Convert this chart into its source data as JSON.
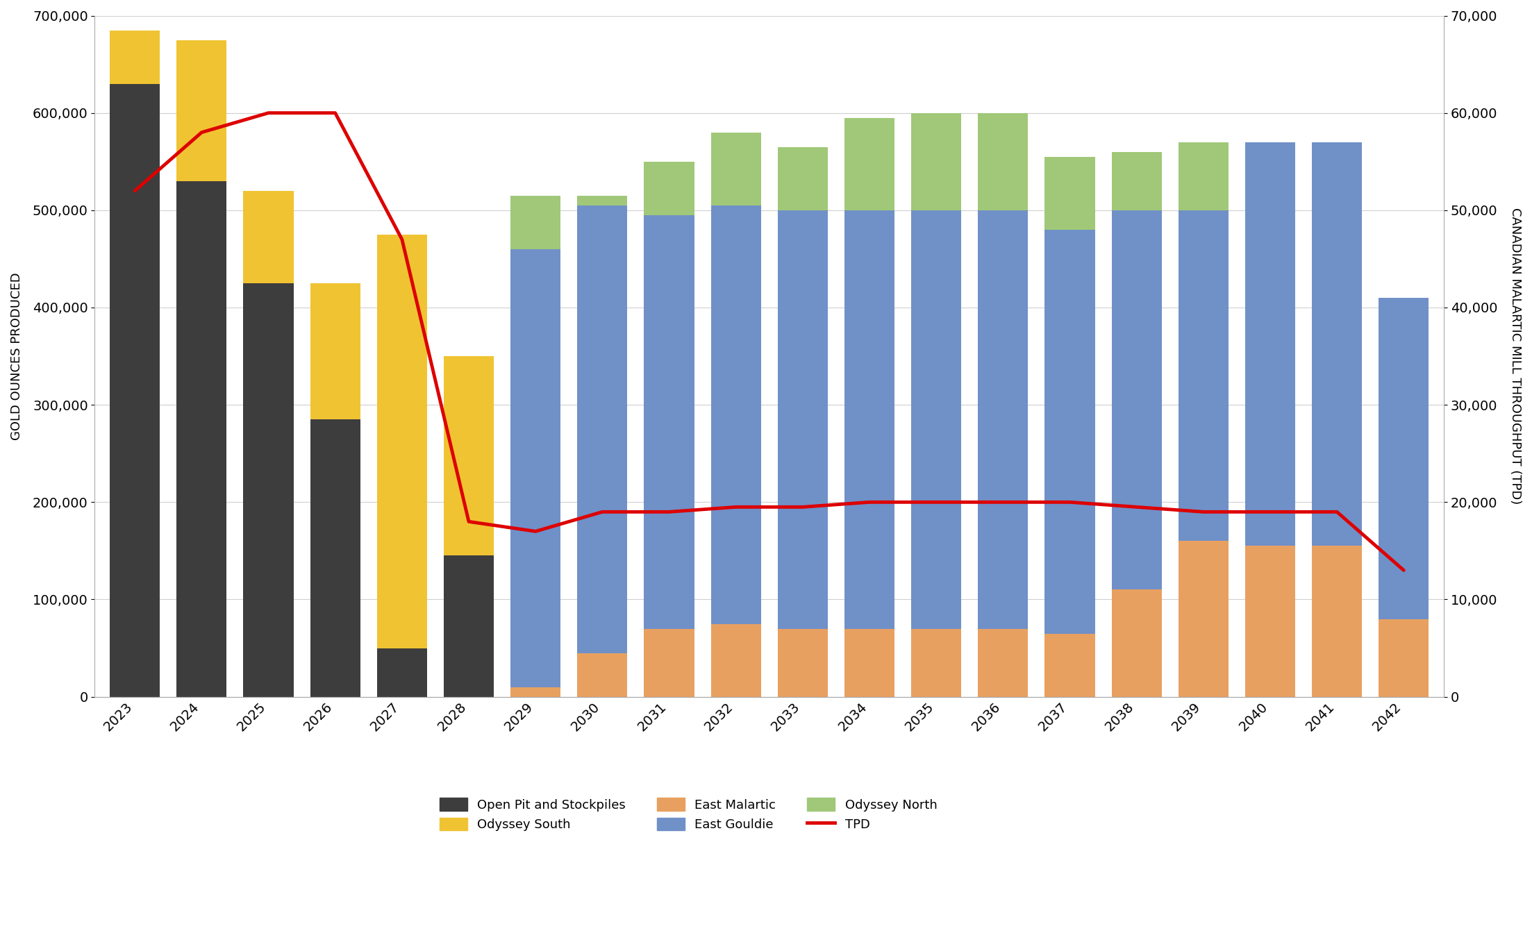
{
  "years": [
    2023,
    2024,
    2025,
    2026,
    2027,
    2028,
    2029,
    2030,
    2031,
    2032,
    2033,
    2034,
    2035,
    2036,
    2037,
    2038,
    2039,
    2040,
    2041,
    2042
  ],
  "open_pit": [
    630000,
    530000,
    425000,
    285000,
    50000,
    145000,
    0,
    0,
    0,
    0,
    0,
    0,
    0,
    0,
    0,
    0,
    0,
    0,
    0,
    0
  ],
  "odyssey_south": [
    55000,
    145000,
    95000,
    140000,
    425000,
    205000,
    0,
    0,
    0,
    0,
    0,
    0,
    0,
    0,
    0,
    0,
    0,
    0,
    0,
    0
  ],
  "east_malartic": [
    0,
    0,
    0,
    0,
    0,
    0,
    10000,
    45000,
    70000,
    75000,
    70000,
    70000,
    70000,
    70000,
    65000,
    110000,
    160000,
    155000,
    155000,
    80000
  ],
  "east_gouldie": [
    0,
    0,
    0,
    0,
    0,
    0,
    450000,
    460000,
    425000,
    430000,
    430000,
    430000,
    430000,
    430000,
    415000,
    390000,
    340000,
    415000,
    415000,
    330000
  ],
  "odyssey_north": [
    0,
    0,
    0,
    0,
    0,
    0,
    55000,
    10000,
    55000,
    75000,
    65000,
    95000,
    100000,
    100000,
    75000,
    60000,
    70000,
    0,
    0,
    0
  ],
  "tpd": [
    52000,
    58000,
    60000,
    60000,
    47000,
    18000,
    17000,
    19000,
    19000,
    19500,
    19500,
    20000,
    20000,
    20000,
    20000,
    19500,
    19000,
    19000,
    19000,
    13000
  ],
  "colors": {
    "open_pit": "#3d3d3d",
    "odyssey_south": "#f0c332",
    "east_malartic": "#e8a060",
    "east_gouldie": "#7090c8",
    "odyssey_north": "#a0c878",
    "tpd": "#dd0000"
  },
  "left_ylim": [
    0,
    700000
  ],
  "right_ylim": [
    0,
    70000
  ],
  "left_yticks": [
    0,
    100000,
    200000,
    300000,
    400000,
    500000,
    600000,
    700000
  ],
  "right_yticks": [
    0,
    10000,
    20000,
    30000,
    40000,
    50000,
    60000,
    70000
  ],
  "ylabel_left": "GOLD OUNCES PRODUCED",
  "ylabel_right": "CANADIAN MALARTIC MILL THROUGHPUT (TPD)",
  "background_color": "#ffffff",
  "figsize": [
    22.06,
    13.67
  ]
}
